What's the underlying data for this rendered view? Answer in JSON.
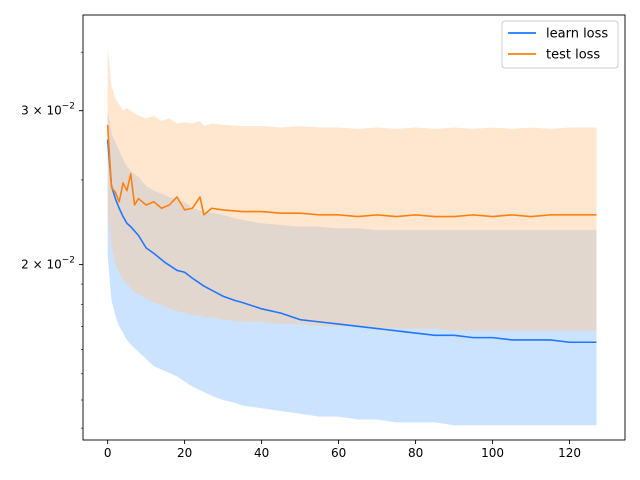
{
  "chart_data": {
    "type": "line",
    "title": "",
    "xlabel": "",
    "ylabel": "",
    "yscale": "log",
    "xlim": [
      -6.4,
      134.4
    ],
    "ylim": [
      0.0126,
      0.0386
    ],
    "grid": false,
    "legend": "top-right",
    "x_ticks": [
      0,
      20,
      40,
      60,
      80,
      100,
      120
    ],
    "x_tick_labels": [
      "0",
      "20",
      "40",
      "60",
      "80",
      "100",
      "120"
    ],
    "y_ticks": [
      0.02,
      0.03
    ],
    "y_tick_labels": [
      {
        "base": "2 × 10",
        "exp": "−2"
      },
      {
        "base": "3 × 10",
        "exp": "−2"
      }
    ],
    "series": [
      {
        "name": "learn loss",
        "color": "#1f77ff",
        "band_color": "#8cc2ff",
        "band_opacity": 0.45,
        "x": [
          0,
          1,
          2,
          3,
          4,
          5,
          6,
          8,
          10,
          12,
          15,
          18,
          20,
          22,
          25,
          28,
          30,
          33,
          35,
          40,
          45,
          50,
          55,
          60,
          65,
          70,
          75,
          80,
          85,
          90,
          95,
          100,
          105,
          110,
          115,
          120,
          125,
          127
        ],
        "y": [
          0.0278,
          0.0246,
          0.0238,
          0.0232,
          0.0227,
          0.0223,
          0.0221,
          0.0216,
          0.0209,
          0.0206,
          0.0201,
          0.0197,
          0.0196,
          0.0193,
          0.0189,
          0.0186,
          0.0184,
          0.0182,
          0.0181,
          0.0178,
          0.0176,
          0.0173,
          0.0172,
          0.0171,
          0.017,
          0.0169,
          0.0168,
          0.0167,
          0.0166,
          0.0166,
          0.0165,
          0.0165,
          0.0164,
          0.0164,
          0.0164,
          0.0163,
          0.0163,
          0.0163
        ],
        "y_upper": [
          0.03,
          0.0282,
          0.0276,
          0.027,
          0.0264,
          0.0259,
          0.0256,
          0.0252,
          0.0246,
          0.0243,
          0.024,
          0.0237,
          0.0236,
          0.0232,
          0.023,
          0.0229,
          0.0228,
          0.0226,
          0.0225,
          0.0223,
          0.0222,
          0.0221,
          0.0221,
          0.022,
          0.022,
          0.0219,
          0.0219,
          0.0219,
          0.0219,
          0.0219,
          0.0219,
          0.0219,
          0.0219,
          0.0219,
          0.0219,
          0.0219,
          0.0219,
          0.0219
        ],
        "y_lower": [
          0.0205,
          0.0182,
          0.0175,
          0.017,
          0.0167,
          0.0164,
          0.0162,
          0.0159,
          0.0156,
          0.0153,
          0.0151,
          0.0149,
          0.0147,
          0.0145,
          0.0143,
          0.0141,
          0.014,
          0.0139,
          0.0138,
          0.0137,
          0.0136,
          0.0135,
          0.0134,
          0.0134,
          0.0133,
          0.0133,
          0.0132,
          0.0132,
          0.0132,
          0.0131,
          0.0131,
          0.0131,
          0.0131,
          0.0131,
          0.0131,
          0.0131,
          0.0131,
          0.0131
        ]
      },
      {
        "name": "test loss",
        "color": "#ff7f0e",
        "band_color": "#ffc894",
        "band_opacity": 0.45,
        "x": [
          0,
          1,
          2,
          3,
          4,
          5,
          6,
          7,
          8,
          10,
          12,
          14,
          16,
          18,
          20,
          22,
          24,
          25,
          27,
          30,
          35,
          40,
          45,
          50,
          55,
          60,
          65,
          70,
          75,
          80,
          85,
          90,
          95,
          100,
          105,
          110,
          115,
          120,
          125,
          127
        ],
        "y": [
          0.0289,
          0.0245,
          0.0242,
          0.0236,
          0.0248,
          0.0243,
          0.0254,
          0.0234,
          0.0238,
          0.0234,
          0.0236,
          0.0232,
          0.0234,
          0.0239,
          0.0231,
          0.0232,
          0.0239,
          0.0228,
          0.0232,
          0.0231,
          0.023,
          0.023,
          0.0229,
          0.0229,
          0.0228,
          0.0228,
          0.0227,
          0.0228,
          0.0227,
          0.0228,
          0.0227,
          0.0227,
          0.0228,
          0.0227,
          0.0228,
          0.0227,
          0.0228,
          0.0228,
          0.0228,
          0.0228
        ],
        "y_upper": [
          0.0355,
          0.032,
          0.031,
          0.0305,
          0.03,
          0.0302,
          0.03,
          0.0298,
          0.0296,
          0.0294,
          0.0296,
          0.0292,
          0.0294,
          0.029,
          0.0291,
          0.029,
          0.0292,
          0.0288,
          0.029,
          0.0289,
          0.0288,
          0.0288,
          0.0287,
          0.0288,
          0.0287,
          0.0287,
          0.0286,
          0.0287,
          0.0286,
          0.0287,
          0.0286,
          0.0287,
          0.0286,
          0.0287,
          0.0286,
          0.0287,
          0.0286,
          0.0287,
          0.0287,
          0.0287
        ],
        "y_lower": [
          0.0228,
          0.021,
          0.02,
          0.0196,
          0.0192,
          0.019,
          0.0188,
          0.0186,
          0.0185,
          0.0183,
          0.0181,
          0.018,
          0.0178,
          0.0177,
          0.0176,
          0.0175,
          0.0175,
          0.0174,
          0.0174,
          0.0173,
          0.0172,
          0.0172,
          0.0171,
          0.0171,
          0.017,
          0.017,
          0.017,
          0.0169,
          0.0169,
          0.0169,
          0.0169,
          0.0168,
          0.0168,
          0.0168,
          0.0168,
          0.0168,
          0.0168,
          0.0168,
          0.0168,
          0.0168
        ]
      }
    ]
  }
}
